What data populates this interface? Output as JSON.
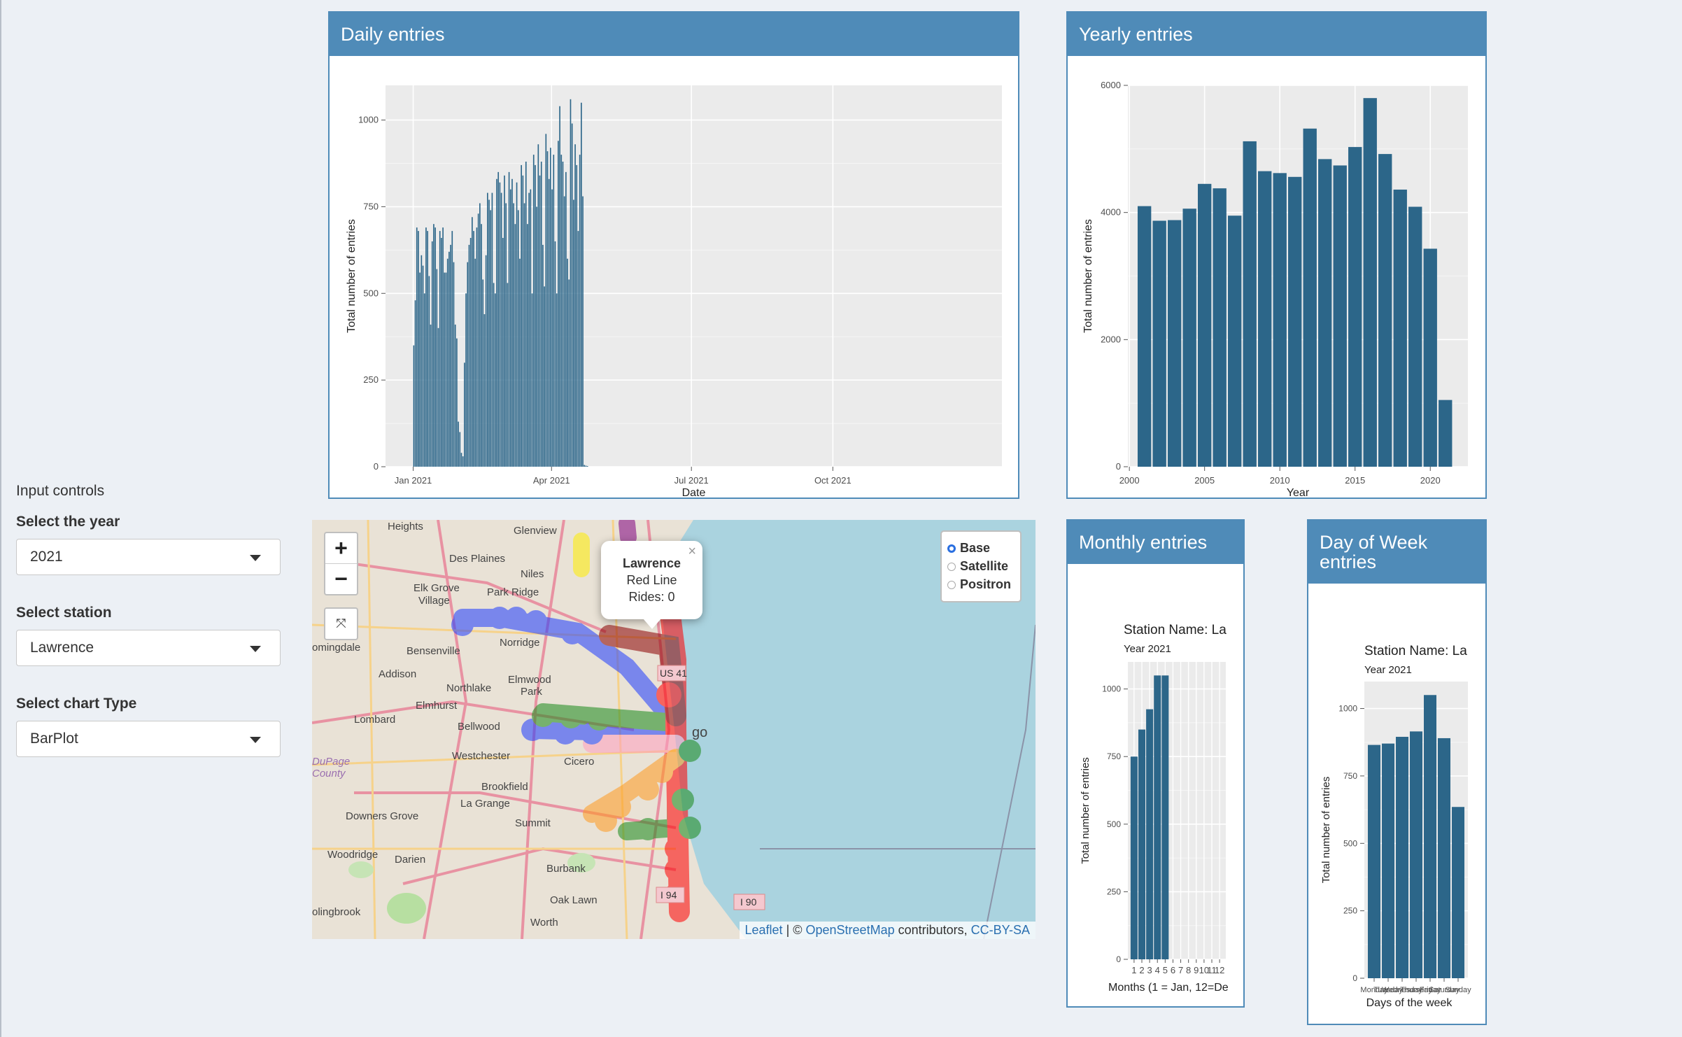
{
  "colors": {
    "bar": "#2c6689",
    "header": "#4f8bb8",
    "panel_bg": "#ebebeb"
  },
  "controls": {
    "heading": "Input controls",
    "year_label": "Select the year",
    "year_value": "2021",
    "station_label": "Select station",
    "station_value": "Lawrence",
    "chart_label": "Select chart Type",
    "chart_value": "BarPlot"
  },
  "boxes": {
    "daily": "Daily entries",
    "yearly": "Yearly entries",
    "monthly": "Monthly entries",
    "dow": "Day of Week entries"
  },
  "map": {
    "zoom_in": "+",
    "zoom_out": "−",
    "expand_icon": "⤧",
    "layers": [
      "Base",
      "Satellite",
      "Positron"
    ],
    "selected_layer": "Base",
    "popup": {
      "name": "Lawrence",
      "line": "Red Line",
      "rides": "Rides: 0",
      "close": "×"
    },
    "attribution": {
      "leaflet": "Leaflet",
      "sep": " | © ",
      "osm": "OpenStreetMap",
      "contrib": " contributors, ",
      "license": "CC-BY-SA"
    },
    "place_labels": [
      "Heights",
      "Glenview",
      "Des Plaines",
      "Niles",
      "Elk Grove Village",
      "Park Ridge",
      "Norridge",
      "Bensenville",
      "Addison",
      "Northlake",
      "Elmwood Park",
      "Elmhurst",
      "Lombard",
      "Bellwood",
      "Westchester",
      "Cicero",
      "Brookfield",
      "La Grange",
      "Summit",
      "Downers Grove",
      "Woodridge",
      "Darien",
      "Burbank",
      "Oak Lawn",
      "Worth",
      "olingbrook",
      "omingdale",
      "DuPage County",
      "go",
      "I 90",
      "I 94",
      "US 41"
    ]
  },
  "chart_data": [
    {
      "id": "daily",
      "type": "bar",
      "title": "Daily entries",
      "xlabel": "Date",
      "ylabel": "Total number of entries",
      "ylim": [
        0,
        1100
      ],
      "yticks": [
        0,
        250,
        500,
        750,
        1000
      ],
      "xticks": [
        "Jan 2021",
        "Apr 2021",
        "Jul 2021",
        "Oct 2021"
      ],
      "series_note": "daily values Jan 1 – May 1 2021 (approx.)",
      "x_start_day": 0,
      "values": [
        350,
        480,
        690,
        680,
        560,
        610,
        580,
        500,
        690,
        680,
        550,
        410,
        650,
        700,
        690,
        570,
        400,
        680,
        660,
        690,
        560,
        560,
        600,
        620,
        640,
        680,
        590,
        410,
        370,
        130,
        100,
        40,
        30,
        300,
        500,
        590,
        640,
        660,
        720,
        680,
        600,
        690,
        730,
        760,
        700,
        540,
        440,
        610,
        790,
        770,
        740,
        790,
        530,
        500,
        830,
        850,
        820,
        790,
        660,
        840,
        760,
        530,
        850,
        800,
        830,
        760,
        700,
        820,
        740,
        600,
        870,
        840,
        760,
        880,
        700,
        790,
        800,
        500,
        900,
        870,
        750,
        930,
        840,
        880,
        640,
        520,
        960,
        910,
        830,
        920,
        800,
        900,
        650,
        500,
        940,
        1040,
        900,
        880,
        780,
        850,
        600,
        540,
        1060,
        990,
        770,
        930,
        870,
        680,
        900,
        1050,
        780,
        5,
        3,
        2
      ]
    },
    {
      "id": "yearly",
      "type": "bar",
      "title": "Yearly entries",
      "xlabel": "Year",
      "ylabel": "Total number of entries",
      "ylim": [
        0,
        6000
      ],
      "yticks": [
        0,
        2000,
        4000,
        6000
      ],
      "xticks": [
        2000,
        2005,
        2010,
        2015,
        2020
      ],
      "categories": [
        2001,
        2002,
        2003,
        2004,
        2005,
        2006,
        2007,
        2008,
        2009,
        2010,
        2011,
        2012,
        2013,
        2014,
        2015,
        2016,
        2017,
        2018,
        2019,
        2020,
        2021
      ],
      "values": [
        4100,
        3870,
        3880,
        4060,
        4450,
        4380,
        3950,
        5120,
        4650,
        4620,
        4560,
        5320,
        4840,
        4740,
        5030,
        5800,
        4920,
        4360,
        4090,
        3430,
        1050
      ]
    },
    {
      "id": "monthly",
      "type": "bar",
      "title": "Monthly entries",
      "subtitle": "Station Name:  La",
      "caption": "Year 2021",
      "xlabel": "Months (1 = Jan, 12=De",
      "ylabel": "Total number of entries",
      "ylim": [
        0,
        1100
      ],
      "yticks": [
        0,
        250,
        500,
        750,
        1000
      ],
      "categories": [
        "1",
        "2",
        "3",
        "4",
        "5",
        "6",
        "7",
        "8",
        "9",
        "10",
        "11",
        "12"
      ],
      "values": [
        750,
        850,
        925,
        1050,
        1050,
        0,
        0,
        0,
        0,
        0,
        0,
        0
      ]
    },
    {
      "id": "dow",
      "type": "bar",
      "title": "Day of Week entries",
      "subtitle": "Station Name:  La",
      "caption": "Year 2021",
      "xlabel": "Days of the week",
      "ylabel": "Total number of entries",
      "ylim": [
        0,
        1100
      ],
      "yticks": [
        0,
        250,
        500,
        750,
        1000
      ],
      "categories": [
        "Monday",
        "Tuesday",
        "Wednesday",
        "Thursday",
        "Friday",
        "Saturday",
        "Sunday"
      ],
      "values": [
        865,
        870,
        895,
        915,
        1050,
        890,
        635
      ]
    }
  ]
}
